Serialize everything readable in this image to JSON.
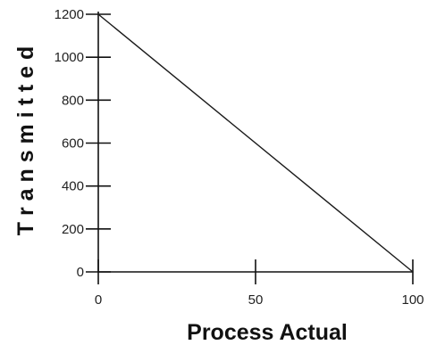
{
  "chart_data": {
    "type": "line",
    "title": "",
    "xlabel": "Process Actual",
    "ylabel": "T r a n s m i t t e d",
    "xlim": [
      0,
      100
    ],
    "ylim": [
      0,
      1200
    ],
    "x_ticks": [
      0,
      50,
      100
    ],
    "x_tick_labels": [
      "0",
      "50",
      "100"
    ],
    "y_ticks": [
      0,
      200,
      400,
      600,
      800,
      1000,
      1200
    ],
    "y_tick_labels": [
      "0",
      "200",
      "400",
      "600",
      "800",
      "1000",
      "1200"
    ],
    "grid": false,
    "legend": "none",
    "series": [
      {
        "x": [
          0,
          100
        ],
        "y": [
          1200,
          0
        ]
      }
    ],
    "colors": {
      "line": "#1a1a1a",
      "axis": "#111111",
      "text": "#222222"
    }
  }
}
